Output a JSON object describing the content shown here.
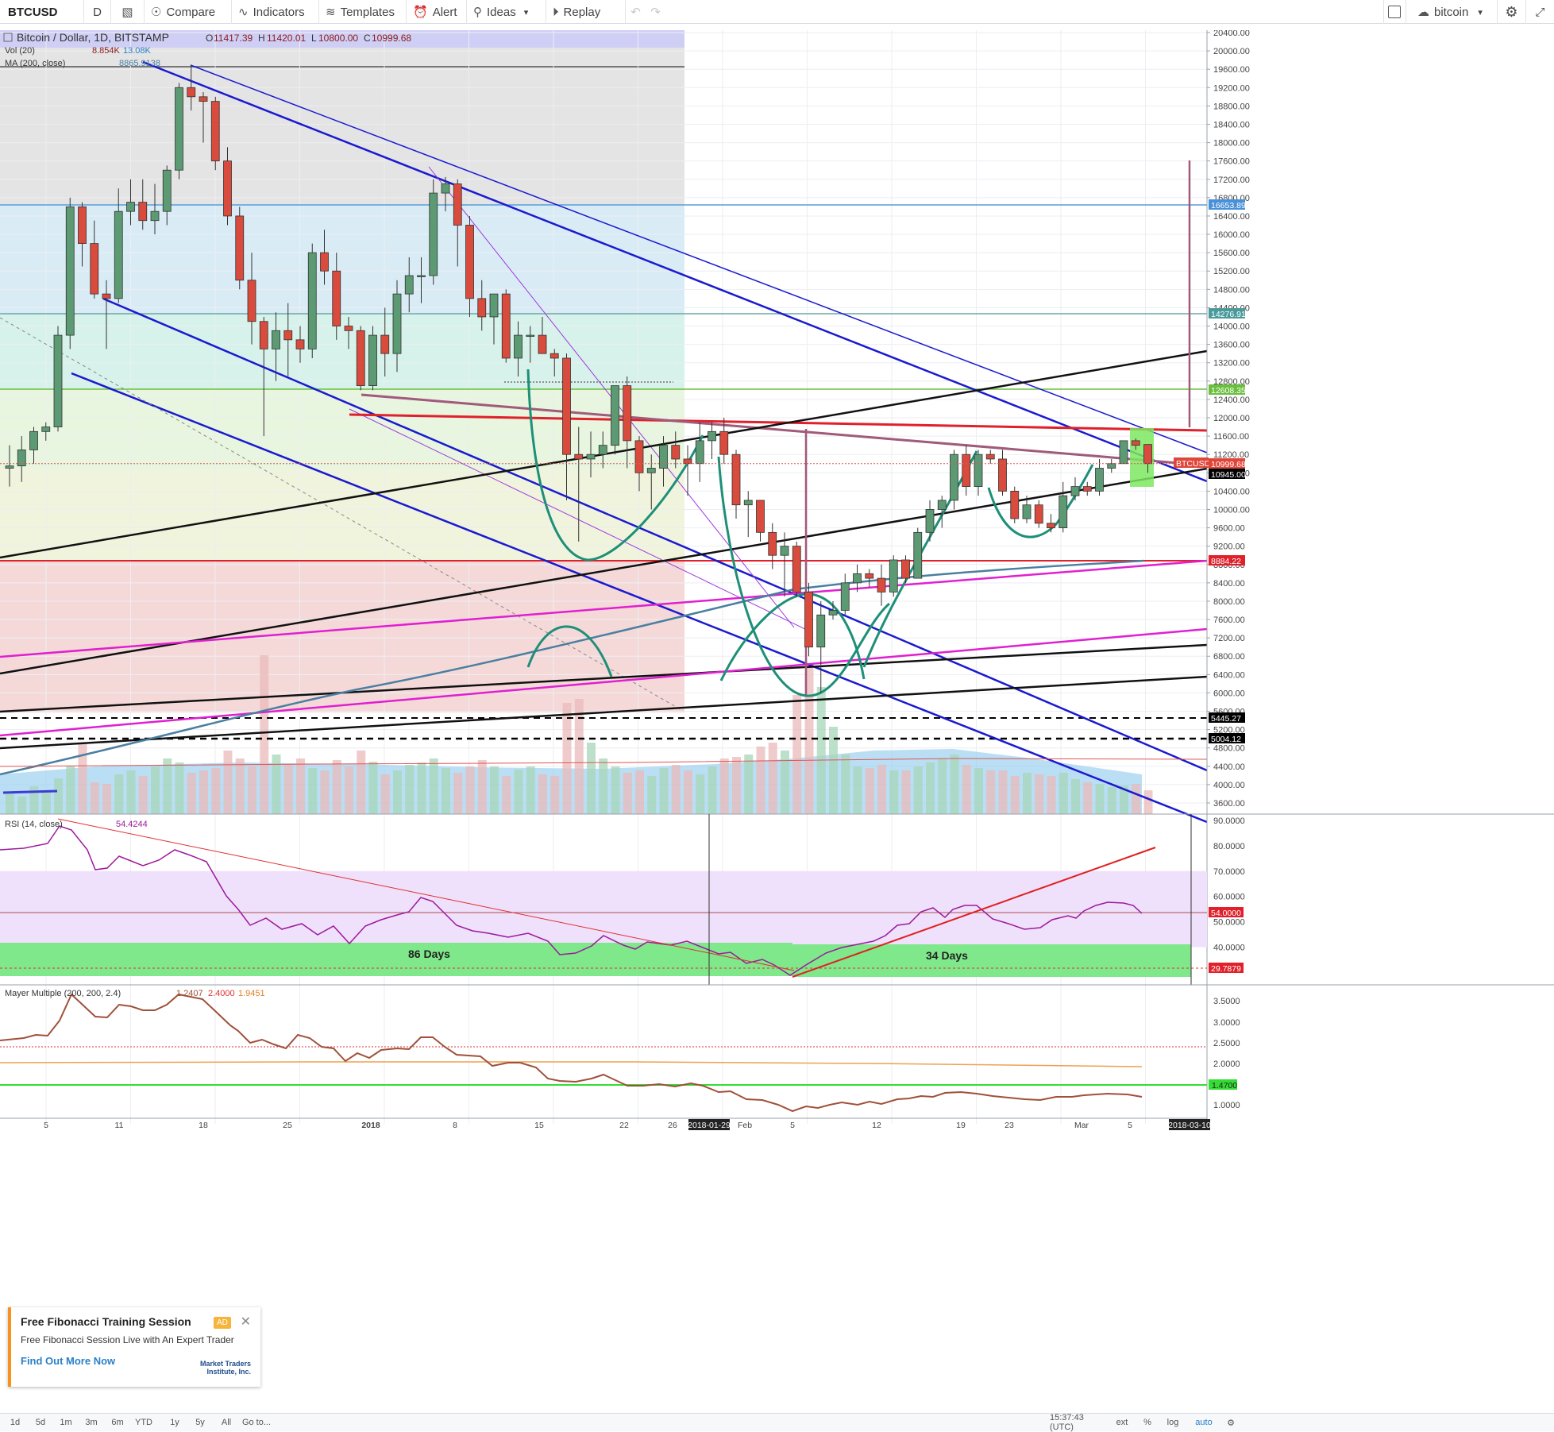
{
  "toolbar": {
    "symbol": "BTCUSD",
    "interval": "D",
    "compare": "Compare",
    "indicators": "Indicators",
    "templates": "Templates",
    "alert": "Alert",
    "ideas": "Ideas",
    "replay": "Replay",
    "saved_layout": "bitcoin"
  },
  "legend": {
    "title": "Bitcoin / Dollar, 1D, BITSTAMP",
    "o_label": "O",
    "o": "11417.39",
    "h_label": "H",
    "h": "11420.01",
    "l_label": "L",
    "l": "10800.00",
    "c_label": "C",
    "c": "10999.68",
    "vol_name": "Vol (20)",
    "vol_v1": "8.854K",
    "vol_v2": "13.08K",
    "ma_name": "MA (200, close)",
    "ma_v": "8865.9138"
  },
  "price_axis": [
    "20400.00",
    "20000.00",
    "19600.00",
    "19200.00",
    "18800.00",
    "18400.00",
    "18000.00",
    "17600.00",
    "17200.00",
    "16800.00",
    "16400.00",
    "16000.00",
    "15600.00",
    "15200.00",
    "14800.00",
    "14400.00",
    "14000.00",
    "13600.00",
    "13200.00",
    "12800.00",
    "12400.00",
    "12000.00",
    "11600.00",
    "11200.00",
    "10800.00",
    "10400.00",
    "10000.00",
    "9600.00",
    "9200.00",
    "8800.00",
    "8400.00",
    "8000.00",
    "7600.00",
    "7200.00",
    "6800.00",
    "6400.00",
    "6000.00",
    "5600.00",
    "5200.00",
    "4800.00",
    "4400.00",
    "4000.00",
    "3600.00"
  ],
  "price_tags": [
    {
      "value": "16653.89",
      "color": "#4a90d9"
    },
    {
      "value": "14276.91",
      "color": "#4a9a9a"
    },
    {
      "value": "12608.35",
      "color": "#6bbf3f"
    },
    {
      "value": "BTCUSD",
      "color": "#e0453a"
    },
    {
      "value": "10999.68",
      "color": "#e0453a"
    },
    {
      "value": "10945.00",
      "color": "#000000"
    },
    {
      "value": "8884.22",
      "color": "#e0202a"
    },
    {
      "value": "5445.27",
      "color": "#000000"
    },
    {
      "value": "5004.12",
      "color": "#000000"
    }
  ],
  "rsi": {
    "name": "RSI (14, close)",
    "value": "54.4244",
    "axis": [
      "90.0000",
      "80.0000",
      "70.0000",
      "60.0000",
      "50.0000",
      "40.0000"
    ],
    "tags": [
      {
        "value": "54.0000",
        "color": "#e0202a"
      },
      {
        "value": "29.7879",
        "color": "#e0202a"
      }
    ],
    "label_86": "86 Days",
    "label_34": "34 Days"
  },
  "mayer": {
    "name": "Mayer Multiple (200, 200, 2.4)",
    "v1": "1.2407",
    "v2": "2.4000",
    "v3": "1.9451",
    "axis": [
      "3.5000",
      "3.0000",
      "2.5000",
      "2.0000",
      "1.0000"
    ],
    "tag": "1.4700"
  },
  "time_axis": [
    "5",
    "11",
    "18",
    "25",
    "2018",
    "8",
    "15",
    "22",
    "26",
    "2018-01-29",
    "Feb",
    "5",
    "12",
    "19",
    "23",
    "Mar",
    "5",
    "2018-03-10"
  ],
  "bottom": {
    "ranges": [
      "1d",
      "5d",
      "1m",
      "3m",
      "6m",
      "YTD",
      "1y",
      "5y",
      "All"
    ],
    "goto": "Go to...",
    "time": "15:37:43 (UTC)",
    "ext": "ext",
    "pct": "%",
    "log": "log",
    "auto": "auto"
  },
  "ad": {
    "title": "Free Fibonacci Training Session",
    "badge": "AD",
    "subtitle": "Free Fibonacci Session Live with An Expert Trader",
    "link": "Find Out More Now",
    "logo": "Market Traders Institute, Inc."
  },
  "chart_data": {
    "type": "candlestick",
    "title": "Bitcoin / Dollar, 1D, BITSTAMP",
    "ohlc_last": {
      "o": 11417.39,
      "h": 11420.01,
      "l": 10800.0,
      "c": 10999.68
    },
    "candles": [
      {
        "o": 10900,
        "h": 11400,
        "l": 10500,
        "c": 10950
      },
      {
        "o": 10950,
        "h": 11600,
        "l": 10600,
        "c": 11300
      },
      {
        "o": 11300,
        "h": 11800,
        "l": 11000,
        "c": 11700
      },
      {
        "o": 11700,
        "h": 11900,
        "l": 11500,
        "c": 11800
      },
      {
        "o": 11800,
        "h": 14000,
        "l": 11700,
        "c": 13800
      },
      {
        "o": 13800,
        "h": 16800,
        "l": 13500,
        "c": 16600
      },
      {
        "o": 16600,
        "h": 16700,
        "l": 15300,
        "c": 15800
      },
      {
        "o": 15800,
        "h": 16300,
        "l": 14600,
        "c": 14700
      },
      {
        "o": 14700,
        "h": 15000,
        "l": 13500,
        "c": 14600
      },
      {
        "o": 14600,
        "h": 17000,
        "l": 14500,
        "c": 16500
      },
      {
        "o": 16500,
        "h": 17200,
        "l": 16200,
        "c": 16700
      },
      {
        "o": 16700,
        "h": 17200,
        "l": 16100,
        "c": 16300
      },
      {
        "o": 16300,
        "h": 17100,
        "l": 16000,
        "c": 16500
      },
      {
        "o": 16500,
        "h": 17500,
        "l": 16200,
        "c": 17400
      },
      {
        "o": 17400,
        "h": 19300,
        "l": 17200,
        "c": 19200
      },
      {
        "o": 19200,
        "h": 19700,
        "l": 18700,
        "c": 19000
      },
      {
        "o": 19000,
        "h": 19100,
        "l": 18000,
        "c": 18900
      },
      {
        "o": 18900,
        "h": 19000,
        "l": 17400,
        "c": 17600
      },
      {
        "o": 17600,
        "h": 17900,
        "l": 16200,
        "c": 16400
      },
      {
        "o": 16400,
        "h": 16600,
        "l": 14800,
        "c": 15000
      },
      {
        "o": 15000,
        "h": 15600,
        "l": 13600,
        "c": 14100
      },
      {
        "o": 14100,
        "h": 14200,
        "l": 11600,
        "c": 13500
      },
      {
        "o": 13500,
        "h": 14300,
        "l": 12800,
        "c": 13900
      },
      {
        "o": 13900,
        "h": 14500,
        "l": 12900,
        "c": 13700
      },
      {
        "o": 13700,
        "h": 14000,
        "l": 13200,
        "c": 13500
      },
      {
        "o": 13500,
        "h": 15800,
        "l": 13300,
        "c": 15600
      },
      {
        "o": 15600,
        "h": 16100,
        "l": 14900,
        "c": 15200
      },
      {
        "o": 15200,
        "h": 15600,
        "l": 13700,
        "c": 14000
      },
      {
        "o": 14000,
        "h": 14200,
        "l": 13500,
        "c": 13900
      },
      {
        "o": 13900,
        "h": 14000,
        "l": 12600,
        "c": 12700
      },
      {
        "o": 12700,
        "h": 14000,
        "l": 12600,
        "c": 13800
      },
      {
        "o": 13800,
        "h": 14400,
        "l": 12900,
        "c": 13400
      },
      {
        "o": 13400,
        "h": 15000,
        "l": 13000,
        "c": 14700
      },
      {
        "o": 14700,
        "h": 15500,
        "l": 14300,
        "c": 15100
      },
      {
        "o": 15100,
        "h": 15500,
        "l": 14500,
        "c": 15100
      },
      {
        "o": 15100,
        "h": 17200,
        "l": 14900,
        "c": 16900
      },
      {
        "o": 16900,
        "h": 17250,
        "l": 16500,
        "c": 17100
      },
      {
        "o": 17100,
        "h": 17200,
        "l": 15300,
        "c": 16200
      },
      {
        "o": 16200,
        "h": 16400,
        "l": 14200,
        "c": 14600
      },
      {
        "o": 14600,
        "h": 15000,
        "l": 13900,
        "c": 14200
      },
      {
        "o": 14200,
        "h": 14700,
        "l": 13600,
        "c": 14700
      },
      {
        "o": 14700,
        "h": 14800,
        "l": 13200,
        "c": 13300
      },
      {
        "o": 13300,
        "h": 14100,
        "l": 12900,
        "c": 13800
      },
      {
        "o": 13800,
        "h": 14000,
        "l": 13200,
        "c": 13800
      },
      {
        "o": 13800,
        "h": 14200,
        "l": 13400,
        "c": 13400
      },
      {
        "o": 13400,
        "h": 13500,
        "l": 12900,
        "c": 13300
      },
      {
        "o": 13300,
        "h": 13400,
        "l": 10200,
        "c": 11200
      },
      {
        "o": 11200,
        "h": 11800,
        "l": 9300,
        "c": 11100
      },
      {
        "o": 11100,
        "h": 11700,
        "l": 10700,
        "c": 11200
      },
      {
        "o": 11200,
        "h": 11700,
        "l": 10900,
        "c": 11400
      },
      {
        "o": 11400,
        "h": 12700,
        "l": 11200,
        "c": 12700
      },
      {
        "o": 12700,
        "h": 12900,
        "l": 10900,
        "c": 11500
      },
      {
        "o": 11500,
        "h": 11600,
        "l": 10400,
        "c": 10800
      },
      {
        "o": 10800,
        "h": 11200,
        "l": 10000,
        "c": 10900
      },
      {
        "o": 10900,
        "h": 11600,
        "l": 10500,
        "c": 11400
      },
      {
        "o": 11400,
        "h": 11700,
        "l": 10900,
        "c": 11100
      },
      {
        "o": 11100,
        "h": 11400,
        "l": 10300,
        "c": 11000
      },
      {
        "o": 11000,
        "h": 11900,
        "l": 10600,
        "c": 11500
      },
      {
        "o": 11500,
        "h": 11900,
        "l": 11100,
        "c": 11700
      },
      {
        "o": 11700,
        "h": 12000,
        "l": 11000,
        "c": 11200
      },
      {
        "o": 11200,
        "h": 11300,
        "l": 9800,
        "c": 10100
      },
      {
        "o": 10100,
        "h": 10400,
        "l": 9400,
        "c": 10200
      },
      {
        "o": 10200,
        "h": 10200,
        "l": 9300,
        "c": 9500
      },
      {
        "o": 9500,
        "h": 9700,
        "l": 8700,
        "c": 9000
      },
      {
        "o": 9000,
        "h": 9500,
        "l": 8100,
        "c": 9200
      },
      {
        "o": 9200,
        "h": 9300,
        "l": 8100,
        "c": 8200
      },
      {
        "o": 8200,
        "h": 8400,
        "l": 6800,
        "c": 7000
      },
      {
        "o": 7000,
        "h": 8000,
        "l": 6000,
        "c": 7700
      },
      {
        "o": 7700,
        "h": 8000,
        "l": 7600,
        "c": 7800
      },
      {
        "o": 7800,
        "h": 8600,
        "l": 7700,
        "c": 8400
      },
      {
        "o": 8400,
        "h": 8800,
        "l": 8200,
        "c": 8600
      },
      {
        "o": 8600,
        "h": 8700,
        "l": 8300,
        "c": 8500
      },
      {
        "o": 8500,
        "h": 8800,
        "l": 7900,
        "c": 8200
      },
      {
        "o": 8200,
        "h": 9000,
        "l": 8100,
        "c": 8900
      },
      {
        "o": 8900,
        "h": 9000,
        "l": 8400,
        "c": 8500
      },
      {
        "o": 8500,
        "h": 9600,
        "l": 8500,
        "c": 9500
      },
      {
        "o": 9500,
        "h": 10200,
        "l": 9300,
        "c": 10000
      },
      {
        "o": 10000,
        "h": 10300,
        "l": 9600,
        "c": 10200
      },
      {
        "o": 10200,
        "h": 11300,
        "l": 10000,
        "c": 11200
      },
      {
        "o": 11200,
        "h": 11400,
        "l": 10300,
        "c": 10500
      },
      {
        "o": 10500,
        "h": 11300,
        "l": 10300,
        "c": 11200
      },
      {
        "o": 11200,
        "h": 11300,
        "l": 11000,
        "c": 11100
      },
      {
        "o": 11100,
        "h": 11300,
        "l": 10300,
        "c": 10400
      },
      {
        "o": 10400,
        "h": 10500,
        "l": 9700,
        "c": 9800
      },
      {
        "o": 9800,
        "h": 10300,
        "l": 9700,
        "c": 10100
      },
      {
        "o": 10100,
        "h": 10200,
        "l": 9600,
        "c": 9700
      },
      {
        "o": 9700,
        "h": 9900,
        "l": 9500,
        "c": 9600
      },
      {
        "o": 9600,
        "h": 10600,
        "l": 9500,
        "c": 10300
      },
      {
        "o": 10300,
        "h": 10700,
        "l": 10200,
        "c": 10500
      },
      {
        "o": 10500,
        "h": 10600,
        "l": 10300,
        "c": 10400
      },
      {
        "o": 10400,
        "h": 11100,
        "l": 10300,
        "c": 10900
      },
      {
        "o": 10900,
        "h": 11100,
        "l": 10800,
        "c": 11000
      },
      {
        "o": 11000,
        "h": 11500,
        "l": 11000,
        "c": 11500
      },
      {
        "o": 11500,
        "h": 11550,
        "l": 11300,
        "c": 11400
      },
      {
        "o": 11417.39,
        "h": 11420.01,
        "l": 10800,
        "c": 10999.68
      }
    ],
    "ylim": [
      3400,
      20600
    ]
  }
}
